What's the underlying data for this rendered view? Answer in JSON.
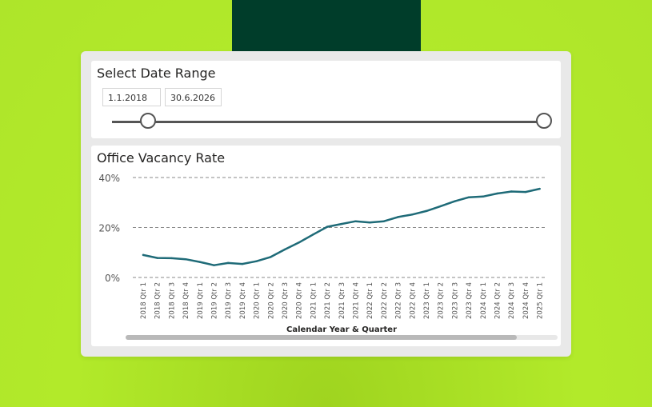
{
  "date_slicer": {
    "title": "Select Date Range",
    "start_date": "1.1.2018",
    "end_date": "30.6.2026"
  },
  "chart_panel": {
    "title": "Office Vacancy Rate"
  },
  "chart_data": {
    "type": "line",
    "title": "Office Vacancy Rate",
    "xlabel": "Calendar Year & Quarter",
    "ylabel": "",
    "ylim": [
      0,
      40
    ],
    "y_ticks": [
      "0%",
      "20%",
      "40%"
    ],
    "y_tick_values": [
      0,
      20,
      40
    ],
    "grid": true,
    "categories": [
      "2018 Qtr 1",
      "2018 Qtr 2",
      "2018 Qtr 3",
      "2018 Qtr 4",
      "2019 Qtr 1",
      "2019 Qtr 2",
      "2019 Qtr 3",
      "2019 Qtr 4",
      "2020 Qtr 1",
      "2020 Qtr 2",
      "2020 Qtr 3",
      "2020 Qtr 4",
      "2021 Qtr 1",
      "2021 Qtr 2",
      "2021 Qtr 3",
      "2021 Qtr 4",
      "2022 Qtr 1",
      "2022 Qtr 2",
      "2022 Qtr 3",
      "2022 Qtr 4",
      "2023 Qtr 1",
      "2023 Qtr 2",
      "2023 Qtr 3",
      "2023 Qtr 4",
      "2024 Qtr 1",
      "2024 Qtr 2",
      "2024 Qtr 3",
      "2024 Qtr 4",
      "2025 Qtr 1"
    ],
    "values": [
      9.0,
      7.8,
      7.7,
      7.3,
      6.2,
      4.9,
      5.8,
      5.4,
      6.5,
      8.2,
      11.2,
      14.0,
      17.2,
      20.3,
      21.4,
      22.5,
      22.0,
      22.5,
      24.2,
      25.2,
      26.6,
      28.5,
      30.5,
      32.1,
      32.4,
      33.6,
      34.4,
      34.2,
      35.5
    ],
    "line_color": "#1f6b78"
  }
}
